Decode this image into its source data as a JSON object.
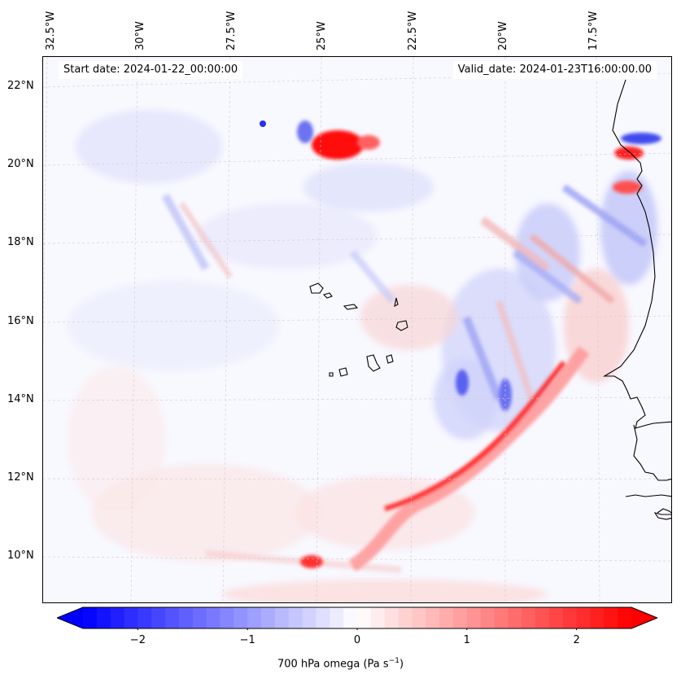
{
  "header": {
    "start_date": "Start date: 2024-01-22_00:00:00",
    "valid_date": "Valid_date: 2024-01-23T16:00:00.00"
  },
  "map": {
    "longitude_labels": [
      "32.5°W",
      "30°W",
      "27.5°W",
      "25°W",
      "22.5°W",
      "20°W",
      "17.5°W"
    ],
    "latitude_labels": [
      "22°N",
      "20°N",
      "18°N",
      "16°N",
      "14°N",
      "12°N",
      "10°N"
    ],
    "gridlines": true,
    "colormap": "bwr",
    "colors": {
      "negative": "#0000ff",
      "zero": "#ffffff",
      "positive": "#ff0000",
      "coastline": "#000000",
      "grid": "#c8b4b4"
    }
  },
  "colorbar": {
    "ticks": [
      "−2",
      "−1",
      "0",
      "1",
      "2"
    ],
    "tick_values": [
      -2,
      -1,
      0,
      1,
      2
    ],
    "range": [
      -2.5,
      2.5
    ],
    "extend": "both",
    "label": "700 hPa omega (Pa s",
    "label_superscript": "−1",
    "label_suffix": ")"
  }
}
